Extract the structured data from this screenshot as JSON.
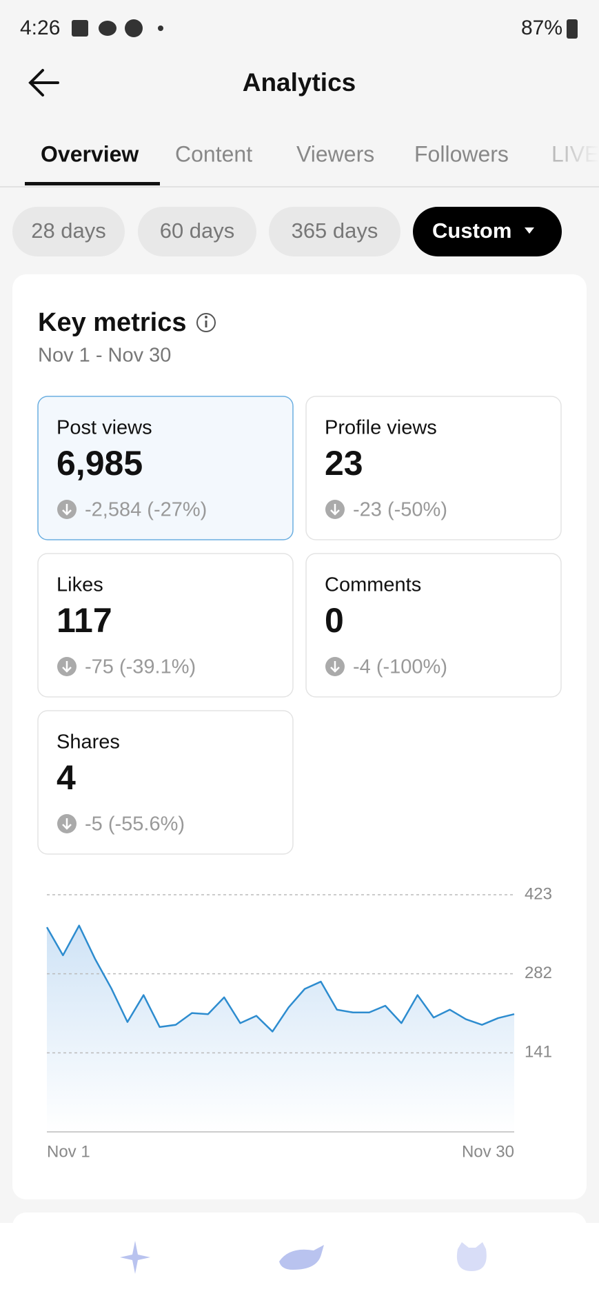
{
  "status_bar": {
    "time": "4:26",
    "battery": "87%"
  },
  "header": {
    "title": "Analytics"
  },
  "tabs": [
    "Overview",
    "Content",
    "Viewers",
    "Followers",
    "LIVE"
  ],
  "filters": [
    "28 days",
    "60 days",
    "365 days",
    "Custom"
  ],
  "card": {
    "title": "Key metrics",
    "date_range": "Nov 1 - Nov 30",
    "metrics": [
      {
        "label": "Post views",
        "value": "6,985",
        "change": "-2,584 (-27%)"
      },
      {
        "label": "Profile views",
        "value": "23",
        "change": "-23 (-50%)"
      },
      {
        "label": "Likes",
        "value": "117",
        "change": "-75 (-39.1%)"
      },
      {
        "label": "Comments",
        "value": "0",
        "change": "-4 (-100%)"
      },
      {
        "label": "Shares",
        "value": "4",
        "change": "-5 (-55.6%)"
      }
    ]
  },
  "chart_data": {
    "type": "line",
    "categories": [
      "Nov 1",
      null,
      null,
      null,
      null,
      null,
      null,
      null,
      null,
      null,
      null,
      null,
      null,
      null,
      null,
      null,
      null,
      null,
      null,
      null,
      null,
      null,
      null,
      null,
      null,
      null,
      null,
      null,
      null,
      "Nov 30"
    ],
    "values": [
      365,
      315,
      368,
      308,
      256,
      196,
      244,
      187,
      191,
      212,
      210,
      240,
      194,
      207,
      179,
      222,
      255,
      268,
      218,
      213,
      213,
      225,
      194,
      244,
      204,
      218,
      201,
      191,
      203,
      210
    ],
    "color": "#2d8ccf",
    "ylim": [
      0,
      423
    ],
    "yticks": [
      141,
      282,
      423
    ],
    "grid": true
  }
}
